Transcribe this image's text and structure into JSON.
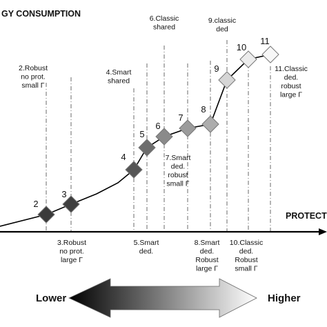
{
  "y_axis_title": "GY CONSUMPTION",
  "x_axis_title": "PROTECTION",
  "scale_low": "Lower",
  "scale_high": "Higher",
  "points": [
    {
      "n": "2",
      "label": [
        "2.Robust",
        "no prot.",
        "small Γ"
      ],
      "shade": "#3a3a3a"
    },
    {
      "n": "3",
      "label": [
        "3.Robust",
        "no prot.",
        "large Γ"
      ],
      "shade": "#3f3f3f"
    },
    {
      "n": "4",
      "label": [
        "4.Smart",
        "shared"
      ],
      "shade": "#555555"
    },
    {
      "n": "5",
      "label": [
        "5.Smart",
        "ded."
      ],
      "shade": "#6e6e6e"
    },
    {
      "n": "6",
      "label": [
        "6.Classic",
        "shared"
      ],
      "shade": "#8a8a8a"
    },
    {
      "n": "7",
      "label": [
        "7.Smart",
        "ded.",
        "robust",
        "small Γ"
      ],
      "shade": "#9b9b9b"
    },
    {
      "n": "8",
      "label": [
        "8.Smart",
        "ded.",
        "Robust",
        "large Γ"
      ],
      "shade": "#adadad"
    },
    {
      "n": "9",
      "label": [
        "9.classic",
        "ded"
      ],
      "shade": "#d6d6d6"
    },
    {
      "n": "10",
      "label": [
        "10.Classic",
        "ded.",
        "Robust",
        "small Γ"
      ],
      "shade": "#ececec"
    },
    {
      "n": "11",
      "label": [
        "11.Classic",
        "ded.",
        "robust",
        "large Γ"
      ],
      "shade": "#f7f7f7"
    }
  ],
  "curve": [
    [
      0,
      328
    ],
    [
      67,
      311
    ],
    [
      103,
      296
    ],
    [
      140,
      281
    ],
    [
      171,
      265
    ],
    [
      194,
      246
    ],
    [
      213,
      214
    ],
    [
      238,
      198
    ],
    [
      272,
      186
    ],
    [
      305,
      180
    ],
    [
      329,
      116
    ],
    [
      360,
      86
    ],
    [
      392,
      79
    ]
  ]
}
